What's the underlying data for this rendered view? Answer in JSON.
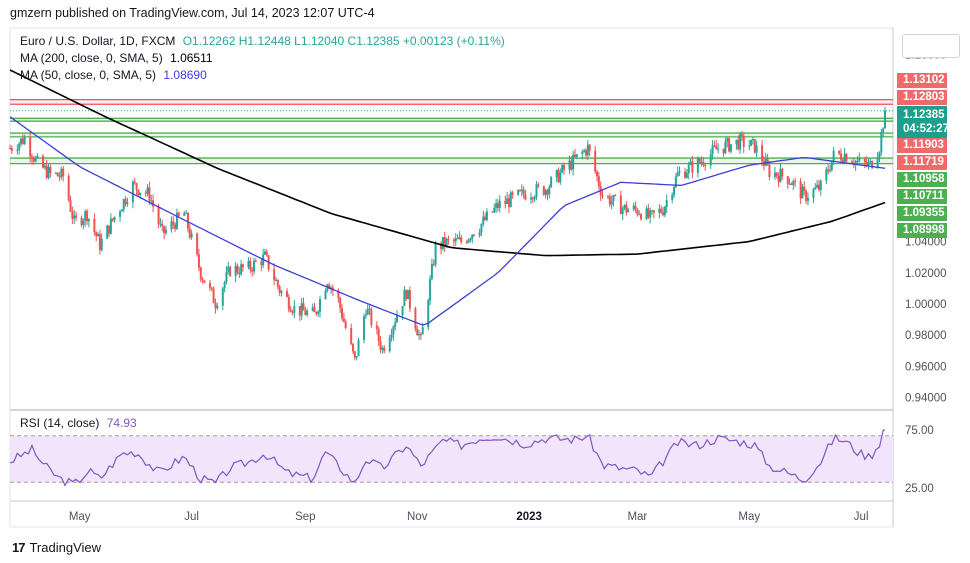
{
  "header": {
    "published": "gmzern published on TradingView.com, Jul 14, 2023 12:07 UTC-4"
  },
  "legend": {
    "instrument": "Euro / U.S. Dollar, 1D, FXCM",
    "ohlc": "O1.12262 H1.12448 L1.12040 C1.12385 +0.00123 (+0.11%)",
    "ma200_label": "MA (200, close, 0, SMA, 5)",
    "ma200_value": "1.06511",
    "ma50_label": "MA (50, close, 0, SMA, 5)",
    "ma50_value": "1.08690",
    "rsi_label": "RSI (14, close)",
    "rsi_value": "74.93"
  },
  "brand": {
    "name": "TradingView",
    "mark": "17"
  },
  "price_labels": {
    "current_price": "1.12385",
    "countdown": "04:52:27",
    "resist_top": "1.13102",
    "resist_bottom": "1.12803",
    "zone1_top": "1.11903",
    "zone1_bottom": "1.11719",
    "zone2_top": "1.10958",
    "zone2_bottom": "1.10711",
    "zone3_top": "1.09355",
    "zone3_bottom": "1.08998",
    "top_tick": "1.16000"
  },
  "colors": {
    "up": "#26a69a",
    "down": "#ef5350",
    "ma200": "#000000",
    "ma50": "#3b3fd6",
    "rsi_line": "#7e57c2",
    "rsi_band": "#f1e4fb",
    "resist": "#ef5350",
    "support": "#4caf50"
  },
  "chart_data": [
    {
      "type": "candlestick",
      "title": "Euro / U.S. Dollar, 1D, FXCM",
      "y_axis_ticks": [
        "1.16000",
        "1.04000",
        "1.02000",
        "1.00000",
        "0.98000",
        "0.96000",
        "0.94000"
      ],
      "ylim": [
        0.93,
        1.165
      ],
      "x_axis_ticks": [
        "May",
        "Jul",
        "Sep",
        "Nov",
        "2023",
        "Mar",
        "May",
        "Jul"
      ],
      "close_anchors": [
        [
          "2022-03-24",
          1.1
        ],
        [
          "2022-04-01",
          1.106
        ],
        [
          "2022-04-08",
          1.09
        ],
        [
          "2022-04-15",
          1.083
        ],
        [
          "2022-04-22",
          1.082
        ],
        [
          "2022-04-28",
          1.052
        ],
        [
          "2022-05-05",
          1.058
        ],
        [
          "2022-05-12",
          1.038
        ],
        [
          "2022-05-20",
          1.056
        ],
        [
          "2022-05-30",
          1.076
        ],
        [
          "2022-06-08",
          1.07
        ],
        [
          "2022-06-15",
          1.045
        ],
        [
          "2022-06-27",
          1.058
        ],
        [
          "2022-07-06",
          1.02
        ],
        [
          "2022-07-14",
          1.001
        ],
        [
          "2022-07-22",
          1.022
        ],
        [
          "2022-08-01",
          1.023
        ],
        [
          "2022-08-10",
          1.03
        ],
        [
          "2022-08-18",
          1.009
        ],
        [
          "2022-08-26",
          0.997
        ],
        [
          "2022-09-06",
          0.993
        ],
        [
          "2022-09-13",
          1.016
        ],
        [
          "2022-09-19",
          1.002
        ],
        [
          "2022-09-28",
          0.963
        ],
        [
          "2022-10-04",
          0.998
        ],
        [
          "2022-10-13",
          0.971
        ],
        [
          "2022-10-26",
          1.008
        ],
        [
          "2022-11-03",
          0.976
        ],
        [
          "2022-11-11",
          1.036
        ],
        [
          "2022-11-16",
          1.039
        ],
        [
          "2022-11-25",
          1.04
        ],
        [
          "2022-12-05",
          1.05
        ],
        [
          "2022-12-15",
          1.063
        ],
        [
          "2022-12-30",
          1.071
        ],
        [
          "2023-01-10",
          1.074
        ],
        [
          "2023-01-20",
          1.086
        ],
        [
          "2023-02-02",
          1.1
        ],
        [
          "2023-02-10",
          1.07
        ],
        [
          "2023-02-22",
          1.061
        ],
        [
          "2023-03-02",
          1.06
        ],
        [
          "2023-03-08",
          1.055
        ],
        [
          "2023-03-15",
          1.061
        ],
        [
          "2023-03-23",
          1.083
        ],
        [
          "2023-04-03",
          1.09
        ],
        [
          "2023-04-14",
          1.1
        ],
        [
          "2023-04-26",
          1.104
        ],
        [
          "2023-05-04",
          1.101
        ],
        [
          "2023-05-12",
          1.085
        ],
        [
          "2023-05-22",
          1.081
        ],
        [
          "2023-05-31",
          1.069
        ],
        [
          "2023-06-09",
          1.075
        ],
        [
          "2023-06-16",
          1.095
        ],
        [
          "2023-06-22",
          1.096
        ],
        [
          "2023-06-30",
          1.09
        ],
        [
          "2023-07-06",
          1.089
        ],
        [
          "2023-07-11",
          1.101
        ],
        [
          "2023-07-14",
          1.12385
        ]
      ],
      "series": [
        {
          "name": "MA (200, close, 0, SMA, 5)",
          "values": [
            [
              "2022-03-24",
              1.15
            ],
            [
              "2022-05-15",
              1.12
            ],
            [
              "2022-07-15",
              1.087
            ],
            [
              "2022-09-15",
              1.058
            ],
            [
              "2022-11-20",
              1.036
            ],
            [
              "2023-01-10",
              1.031
            ],
            [
              "2023-03-01",
              1.032
            ],
            [
              "2023-05-01",
              1.04
            ],
            [
              "2023-06-15",
              1.053
            ],
            [
              "2023-07-14",
              1.065
            ]
          ]
        },
        {
          "name": "MA (50, close, 0, SMA, 5)",
          "values": [
            [
              "2022-03-24",
              1.12
            ],
            [
              "2022-05-01",
              1.088
            ],
            [
              "2022-06-20",
              1.058
            ],
            [
              "2022-08-15",
              1.025
            ],
            [
              "2022-10-01",
              1.002
            ],
            [
              "2022-11-05",
              0.986
            ],
            [
              "2022-12-15",
              1.02
            ],
            [
              "2023-01-20",
              1.063
            ],
            [
              "2023-02-20",
              1.078
            ],
            [
              "2023-03-25",
              1.076
            ],
            [
              "2023-05-01",
              1.089
            ],
            [
              "2023-05-31",
              1.094
            ],
            [
              "2023-07-14",
              1.087
            ]
          ]
        }
      ],
      "horizontal_levels": [
        {
          "name": "resistance",
          "values": [
            1.13102,
            1.12803
          ]
        },
        {
          "name": "zone1",
          "values": [
            1.11903,
            1.11719
          ]
        },
        {
          "name": "zone2",
          "values": [
            1.10958,
            1.10711
          ]
        },
        {
          "name": "zone3",
          "values": [
            1.09355,
            1.08998
          ]
        }
      ]
    },
    {
      "type": "line",
      "title": "RSI (14, close)",
      "y_axis_ticks": [
        "75.00",
        "25.00"
      ],
      "ylim": [
        15,
        85
      ],
      "band": [
        30,
        70
      ],
      "last_value": 74.93,
      "series": [
        {
          "name": "RSI (14, close)",
          "values": [
            [
              "2022-03-24",
              48
            ],
            [
              "2022-04-05",
              58
            ],
            [
              "2022-04-12",
              44
            ],
            [
              "2022-04-20",
              33
            ],
            [
              "2022-04-28",
              28
            ],
            [
              "2022-05-06",
              40
            ],
            [
              "2022-05-12",
              33
            ],
            [
              "2022-05-24",
              55
            ],
            [
              "2022-06-01",
              56
            ],
            [
              "2022-06-13",
              38
            ],
            [
              "2022-06-27",
              52
            ],
            [
              "2022-07-06",
              33
            ],
            [
              "2022-07-14",
              29
            ],
            [
              "2022-07-22",
              42
            ],
            [
              "2022-08-02",
              48
            ],
            [
              "2022-08-10",
              55
            ],
            [
              "2022-08-22",
              38
            ],
            [
              "2022-09-05",
              33
            ],
            [
              "2022-09-12",
              56
            ],
            [
              "2022-09-28",
              29
            ],
            [
              "2022-10-04",
              50
            ],
            [
              "2022-10-13",
              42
            ],
            [
              "2022-10-26",
              62
            ],
            [
              "2022-11-03",
              44
            ],
            [
              "2022-11-15",
              66
            ],
            [
              "2022-11-25",
              62
            ],
            [
              "2022-12-05",
              68
            ],
            [
              "2022-12-14",
              70
            ],
            [
              "2022-12-30",
              63
            ],
            [
              "2023-01-10",
              68
            ],
            [
              "2023-01-26",
              67
            ],
            [
              "2023-02-02",
              70
            ],
            [
              "2023-02-10",
              45
            ],
            [
              "2023-02-20",
              42
            ],
            [
              "2023-03-01",
              40
            ],
            [
              "2023-03-08",
              34
            ],
            [
              "2023-03-15",
              48
            ],
            [
              "2023-03-23",
              64
            ],
            [
              "2023-04-03",
              62
            ],
            [
              "2023-04-14",
              68
            ],
            [
              "2023-04-26",
              65
            ],
            [
              "2023-05-04",
              62
            ],
            [
              "2023-05-12",
              44
            ],
            [
              "2023-05-22",
              38
            ],
            [
              "2023-05-31",
              32
            ],
            [
              "2023-06-09",
              48
            ],
            [
              "2023-06-16",
              68
            ],
            [
              "2023-06-22",
              66
            ],
            [
              "2023-06-30",
              55
            ],
            [
              "2023-07-06",
              52
            ],
            [
              "2023-07-11",
              64
            ],
            [
              "2023-07-14",
              74.93
            ]
          ]
        }
      ]
    }
  ]
}
